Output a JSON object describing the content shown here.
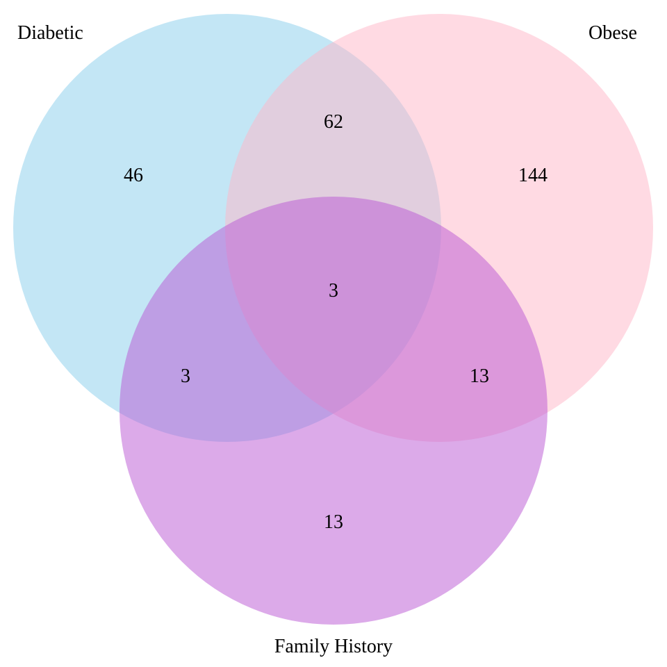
{
  "sets": [
    {
      "key": "diabetic",
      "label": "Diabetic",
      "color": "#87CEEB"
    },
    {
      "key": "obese",
      "label": "Obese",
      "color": "#FFB6C8"
    },
    {
      "key": "family",
      "label": "Family History",
      "color": "#BA55D3"
    }
  ],
  "regions": {
    "diabetic_only": "46",
    "obese_only": "144",
    "family_only": "13",
    "diabetic_obese": "62",
    "diabetic_family": "3",
    "obese_family": "13",
    "all_three": "3"
  }
}
